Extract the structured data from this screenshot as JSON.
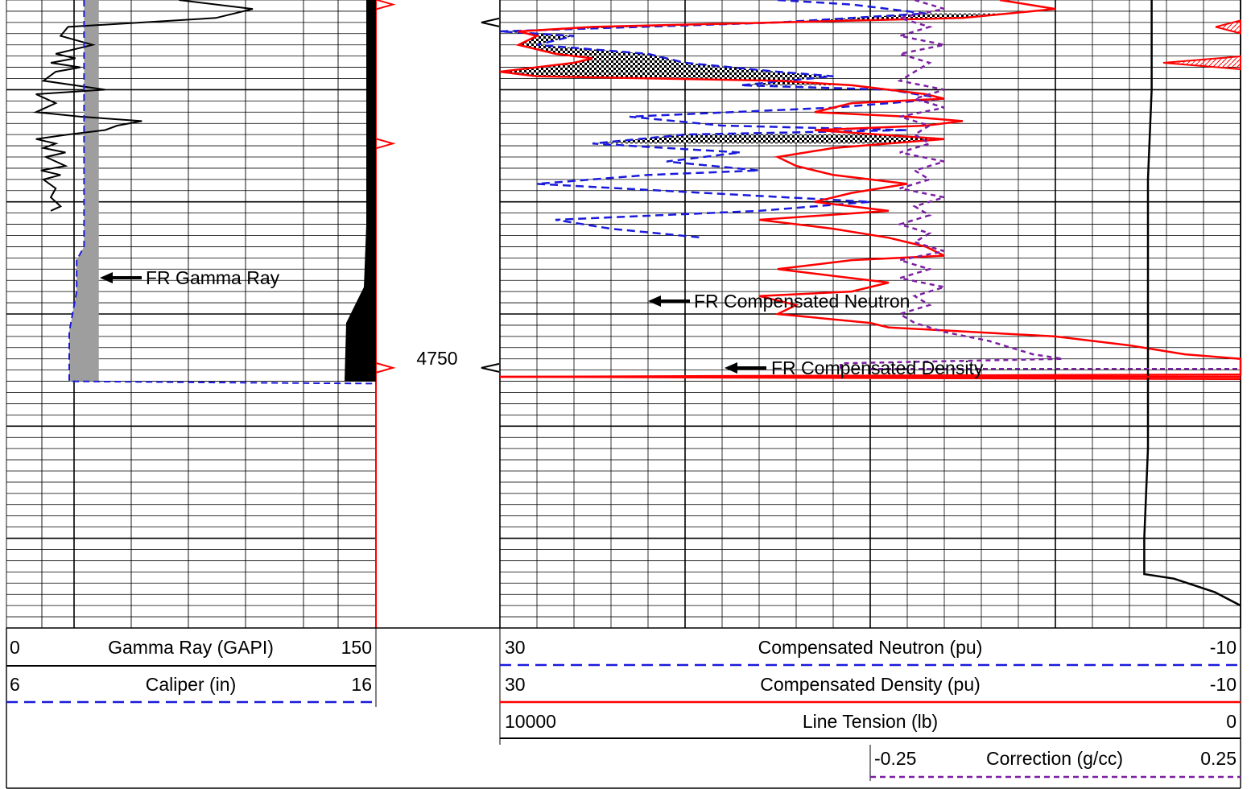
{
  "colors": {
    "gamma_ray": "#000000",
    "caliper": "#1a1adb",
    "neutron": "#1a1adb",
    "density": "#ff0000",
    "tension": "#000000",
    "correction": "#7b1fa2",
    "grid": "#000000",
    "track_edge": "#ff0000"
  },
  "icons": {
    "arrow": "left-arrow-icon",
    "depth_marker": "left-triangle-icon",
    "track_tick": "right-triangle-icon"
  },
  "chart_data": {
    "type": "line",
    "depth": {
      "top": 4680,
      "bottom": 4820,
      "unit": "ft",
      "label": "4750",
      "labeled_value": 4750,
      "log_end": 4765,
      "major_step": 25,
      "minor_step": 2.5
    },
    "grid": true,
    "tracks": [
      {
        "id": "track1",
        "curves": [
          {
            "name": "Gamma Ray (GAPI)",
            "scale_left": "0",
            "scale_right": "150",
            "range": [
              0,
              150
            ],
            "style": "solid",
            "annotation": "FR Gamma Ray",
            "points": [
              [
                4680,
                70
              ],
              [
                4682,
                100
              ],
              [
                4684,
                85
              ],
              [
                4686,
                25
              ],
              [
                4688,
                22
              ],
              [
                4690,
                35
              ],
              [
                4692,
                20
              ],
              [
                4693,
                28
              ],
              [
                4694,
                18
              ],
              [
                4695,
                30
              ],
              [
                4696,
                20
              ],
              [
                4698,
                15
              ],
              [
                4700,
                40
              ],
              [
                4701,
                12
              ],
              [
                4703,
                20
              ],
              [
                4705,
                12
              ],
              [
                4706,
                30
              ],
              [
                4707,
                55
              ],
              [
                4708,
                45
              ],
              [
                4709,
                40
              ],
              [
                4710,
                25
              ],
              [
                4711,
                12
              ],
              [
                4712,
                20
              ],
              [
                4713,
                15
              ],
              [
                4714,
                24
              ],
              [
                4715,
                16
              ],
              [
                4717,
                24
              ],
              [
                4718,
                14
              ],
              [
                4719,
                22
              ],
              [
                4720,
                15
              ],
              [
                4722,
                20
              ],
              [
                4724,
                18
              ],
              [
                4726,
                22
              ],
              [
                4727,
                18
              ]
            ]
          },
          {
            "name": "Caliper (in)",
            "scale_left": "6",
            "scale_right": "16",
            "range": [
              6,
              16
            ],
            "style": "dashed",
            "points": [
              [
                4680,
                8.1
              ],
              [
                4700,
                8.1
              ],
              [
                4720,
                8.1
              ],
              [
                4735,
                8.1
              ],
              [
                4738,
                7.9
              ],
              [
                4745,
                7.9
              ],
              [
                4754,
                7.7
              ],
              [
                4765,
                7.7
              ],
              [
                4765.3,
                12
              ],
              [
                4765.5,
                16
              ]
            ]
          }
        ]
      },
      {
        "id": "track3",
        "curves": [
          {
            "name": "Compensated Neutron (pu)",
            "scale_left": "30",
            "scale_right": "-10",
            "range": [
              30,
              -10
            ],
            "style": "dashed",
            "annotation": "FR Compensated Neutron",
            "points": [
              [
                4680,
                15
              ],
              [
                4681,
                11
              ],
              [
                4683,
                7
              ],
              [
                4685,
                15
              ],
              [
                4687,
                30
              ],
              [
                4688,
                26
              ],
              [
                4690,
                28
              ],
              [
                4692,
                22
              ],
              [
                4694,
                20
              ],
              [
                4696,
                15
              ],
              [
                4697,
                12
              ],
              [
                4699,
                17
              ],
              [
                4700,
                9
              ],
              [
                4702,
                6
              ],
              [
                4704,
                12
              ],
              [
                4706,
                23
              ],
              [
                4708,
                18
              ],
              [
                4709,
                8
              ],
              [
                4710,
                20
              ],
              [
                4712,
                25
              ],
              [
                4714,
                17
              ],
              [
                4716,
                21
              ],
              [
                4718,
                16
              ],
              [
                4719,
                22
              ],
              [
                4721,
                28
              ],
              [
                4723,
                19
              ],
              [
                4725,
                10
              ],
              [
                4727,
                16
              ],
              [
                4729,
                27
              ],
              [
                4731,
                24
              ],
              [
                4733,
                19
              ]
            ]
          },
          {
            "name": "Compensated Density (pu)",
            "scale_left": "30",
            "scale_right": "-10",
            "range": [
              30,
              -10
            ],
            "style": "solid",
            "annotation": "FR Compensated Density",
            "points": [
              [
                4680,
                3
              ],
              [
                4682,
                0
              ],
              [
                4684,
                5
              ],
              [
                4686,
                25
              ],
              [
                4687,
                29
              ],
              [
                4688,
                28
              ],
              [
                4690,
                29
              ],
              [
                4692,
                27
              ],
              [
                4693,
                25
              ],
              [
                4694,
                26
              ],
              [
                4696,
                30
              ],
              [
                4697,
                28
              ],
              [
                4698,
                15
              ],
              [
                4699,
                11
              ],
              [
                4701,
                7
              ],
              [
                4702,
                6
              ],
              [
                4703,
                11
              ],
              [
                4705,
                13
              ],
              [
                4706,
                8
              ],
              [
                4707,
                5
              ],
              [
                4708,
                7
              ],
              [
                4709,
                13
              ],
              [
                4711,
                6
              ],
              [
                4713,
                12
              ],
              [
                4715,
                15
              ],
              [
                4717,
                14
              ],
              [
                4719,
                12
              ],
              [
                4721,
                8
              ],
              [
                4723,
                11
              ],
              [
                4725,
                13
              ],
              [
                4727,
                9
              ],
              [
                4729,
                16
              ],
              [
                4731,
                12
              ],
              [
                4733,
                9
              ],
              [
                4735,
                7
              ],
              [
                4737,
                6
              ],
              [
                4738,
                11
              ],
              [
                4740,
                15
              ],
              [
                4741,
                13
              ],
              [
                4743,
                9
              ],
              [
                4745,
                11
              ],
              [
                4746,
                16
              ],
              [
                4748,
                14
              ],
              [
                4750,
                15
              ],
              [
                4752,
                10
              ],
              [
                4753,
                9
              ],
              [
                4755,
                0
              ],
              [
                4757,
                -4
              ],
              [
                4759,
                -7
              ],
              [
                4760,
                -10
              ],
              [
                4762,
                -10
              ],
              [
                4763.5,
                -10
              ],
              [
                4764,
                30
              ],
              [
                4764.5,
                -10
              ]
            ]
          },
          {
            "name": "Line Tension (lb)",
            "scale_left": "10000",
            "scale_right": "0",
            "range": [
              10000,
              0
            ],
            "style": "solid",
            "points": [
              [
                4680,
                1200
              ],
              [
                4700,
                1200
              ],
              [
                4720,
                1250
              ],
              [
                4740,
                1250
              ],
              [
                4760,
                1250
              ],
              [
                4780,
                1250
              ],
              [
                4800,
                1300
              ],
              [
                4808,
                1300
              ],
              [
                4809,
                900
              ],
              [
                4812,
                350
              ],
              [
                4815,
                0
              ]
            ]
          },
          {
            "name": "Correction (g/cc)",
            "scale_left": "-0.25",
            "scale_right": "0.25",
            "range": [
              -0.25,
              0.25
            ],
            "style": "dashed",
            "points": [
              [
                4680,
                0.03
              ],
              [
                4682,
                0.05
              ],
              [
                4684,
                0.02
              ],
              [
                4686,
                0.04
              ],
              [
                4688,
                0.02
              ],
              [
                4690,
                0.05
              ],
              [
                4692,
                0.02
              ],
              [
                4694,
                0.04
              ],
              [
                4696,
                0.03
              ],
              [
                4698,
                0.02
              ],
              [
                4700,
                0.05
              ],
              [
                4702,
                0.03
              ],
              [
                4704,
                0.05
              ],
              [
                4706,
                0.02
              ],
              [
                4708,
                0.04
              ],
              [
                4710,
                0.03
              ],
              [
                4712,
                0.04
              ],
              [
                4714,
                0.02
              ],
              [
                4716,
                0.05
              ],
              [
                4718,
                0.03
              ],
              [
                4720,
                0.04
              ],
              [
                4722,
                0.02
              ],
              [
                4724,
                0.05
              ],
              [
                4726,
                0.03
              ],
              [
                4728,
                0.04
              ],
              [
                4730,
                0.02
              ],
              [
                4732,
                0.04
              ],
              [
                4734,
                0.03
              ],
              [
                4736,
                0.05
              ],
              [
                4738,
                0.02
              ],
              [
                4740,
                0.04
              ],
              [
                4742,
                0.02
              ],
              [
                4744,
                0.05
              ],
              [
                4746,
                0.03
              ],
              [
                4748,
                0.04
              ],
              [
                4750,
                0.02
              ],
              [
                4752,
                0.03
              ],
              [
                4754,
                0.05
              ],
              [
                4756,
                0.08
              ],
              [
                4758,
                0.1
              ],
              [
                4759,
                0.11
              ],
              [
                4760,
                0.13
              ],
              [
                4761,
                -0.02
              ],
              [
                4762.5,
                -0.02
              ]
            ]
          }
        ]
      }
    ],
    "flag_markers_depths": [
      4681,
      4712,
      4762
    ],
    "depth_markers_depths": [
      4685,
      4762
    ]
  }
}
